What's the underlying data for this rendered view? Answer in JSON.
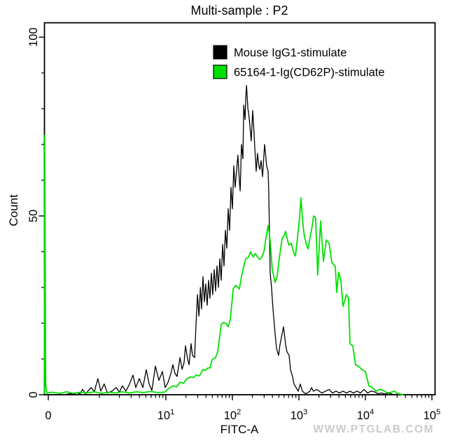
{
  "title": "Multi-sample : P2",
  "watermark": "WWW.PTGLAB.COM",
  "axes": {
    "xlabel": "FITC-A",
    "ylabel": "Count"
  },
  "legend": {
    "items": [
      {
        "label": "Mouse IgG1-stimulate",
        "color": "#000000"
      },
      {
        "label": "65164-1-Ig(CD62P)-stimulate",
        "color": "#00e000"
      }
    ]
  },
  "chart_data": {
    "type": "line",
    "subtype": "flow-cytometry-overlay-histogram",
    "title": "Multi-sample : P2",
    "xlabel": "FITC-A",
    "ylabel": "Count",
    "x_scale": "logicle (linear near 0, logarithmic above 1)",
    "xlim": [
      0,
      100000
    ],
    "ylim": [
      0,
      104
    ],
    "x_ticks": [
      "0",
      "10^1",
      "10^2",
      "10^3",
      "10^4",
      "10^5"
    ],
    "y_ticks": [
      0,
      50,
      100
    ],
    "y_minor_step": 10,
    "grid": false,
    "legend_position": "top-center-inside",
    "series": [
      {
        "name": "Mouse IgG1-stimulate",
        "color": "#000000",
        "stroke_width": 1.3,
        "points": [
          [
            -0.08,
            0
          ],
          [
            0.3,
            0
          ],
          [
            0.42,
            0.3
          ],
          [
            0.5,
            0.1
          ],
          [
            0.56,
            0.6
          ],
          [
            0.62,
            0.2
          ],
          [
            0.67,
            1.5
          ],
          [
            0.73,
            0.3
          ],
          [
            0.84,
            2
          ],
          [
            0.9,
            0.8
          ],
          [
            0.97,
            4.5
          ],
          [
            1.05,
            1
          ],
          [
            1.18,
            3
          ],
          [
            1.32,
            0.5
          ],
          [
            1.55,
            1
          ],
          [
            1.79,
            2
          ],
          [
            2,
            0.7
          ],
          [
            2.22,
            2.5
          ],
          [
            2.5,
            1
          ],
          [
            2.84,
            3
          ],
          [
            3.2,
            5.5
          ],
          [
            3.53,
            2
          ],
          [
            3.98,
            4.5
          ],
          [
            4.5,
            2
          ],
          [
            5.07,
            7
          ],
          [
            5.59,
            3
          ],
          [
            6.16,
            1.2
          ],
          [
            6.95,
            8
          ],
          [
            7.85,
            4
          ],
          [
            8.86,
            6.5
          ],
          [
            9.76,
            2
          ],
          [
            10.8,
            3.5
          ],
          [
            11.9,
            6
          ],
          [
            12.7,
            8.4
          ],
          [
            13.7,
            6
          ],
          [
            14.7,
            5.1
          ],
          [
            16.3,
            10.4
          ],
          [
            17.5,
            7.1
          ],
          [
            18.8,
            9
          ],
          [
            19.7,
            13.7
          ],
          [
            21.2,
            10
          ],
          [
            22.3,
            8.4
          ],
          [
            23.9,
            14.3
          ],
          [
            25.1,
            11
          ],
          [
            27,
            10.4
          ],
          [
            28.4,
            20
          ],
          [
            29.8,
            28
          ],
          [
            31.4,
            22
          ],
          [
            33,
            30
          ],
          [
            34.4,
            24
          ],
          [
            36.1,
            33
          ],
          [
            37.9,
            26
          ],
          [
            39.7,
            31
          ],
          [
            41.8,
            25
          ],
          [
            43.8,
            32
          ],
          [
            45.9,
            27
          ],
          [
            48.3,
            34
          ],
          [
            50.6,
            28
          ],
          [
            53.2,
            35
          ],
          [
            55.9,
            29
          ],
          [
            58.6,
            36
          ],
          [
            61.6,
            30
          ],
          [
            64.7,
            38
          ],
          [
            67.8,
            32
          ],
          [
            71.2,
            42
          ],
          [
            74.8,
            36
          ],
          [
            78.5,
            46
          ],
          [
            82.4,
            41
          ],
          [
            86.4,
            52
          ],
          [
            90.7,
            46
          ],
          [
            95.3,
            58
          ],
          [
            100,
            52
          ],
          [
            105,
            64
          ],
          [
            110,
            58
          ],
          [
            116,
            63
          ],
          [
            121,
            67
          ],
          [
            127,
            60
          ],
          [
            131,
            57
          ],
          [
            137,
            70
          ],
          [
            144,
            66
          ],
          [
            148,
            81
          ],
          [
            155,
            77
          ],
          [
            159,
            83
          ],
          [
            163,
            86.5
          ],
          [
            171,
            80
          ],
          [
            175,
            79
          ],
          [
            183,
            75.5
          ],
          [
            192,
            71
          ],
          [
            202,
            79.5
          ],
          [
            212,
            73
          ],
          [
            217,
            69
          ],
          [
            228,
            62.5
          ],
          [
            239,
            67.5
          ],
          [
            250,
            64
          ],
          [
            258,
            63
          ],
          [
            270,
            65.5
          ],
          [
            284,
            61
          ],
          [
            305,
            70
          ],
          [
            320,
            66
          ],
          [
            327,
            64
          ],
          [
            344,
            62.5
          ],
          [
            352,
            57
          ],
          [
            370,
            34
          ],
          [
            388,
            30
          ],
          [
            408,
            24
          ],
          [
            439,
            17
          ],
          [
            460,
            13
          ],
          [
            495,
            11
          ],
          [
            520,
            14
          ],
          [
            559,
            17
          ],
          [
            586,
            19
          ],
          [
            631,
            14
          ],
          [
            662,
            12
          ],
          [
            712,
            11
          ],
          [
            748,
            7
          ],
          [
            804,
            5
          ],
          [
            844,
            3
          ],
          [
            908,
            2
          ],
          [
            975,
            1
          ],
          [
            1050,
            3
          ],
          [
            1130,
            1
          ],
          [
            1210,
            0.5
          ],
          [
            1280,
            0.3
          ],
          [
            1470,
            1
          ],
          [
            1550,
            2
          ],
          [
            1650,
            1
          ],
          [
            1860,
            1.5
          ],
          [
            2090,
            0.8
          ],
          [
            2220,
            0.5
          ],
          [
            2510,
            1
          ],
          [
            2840,
            1.5
          ],
          [
            3200,
            0.5
          ],
          [
            3610,
            1
          ],
          [
            4080,
            0.5
          ],
          [
            4600,
            1
          ],
          [
            5200,
            0.5
          ],
          [
            5860,
            1
          ],
          [
            6620,
            0.5
          ],
          [
            7480,
            1
          ],
          [
            8440,
            0.5
          ],
          [
            9530,
            1.5
          ],
          [
            10800,
            0.5
          ],
          [
            12100,
            1
          ],
          [
            13700,
            0.8
          ],
          [
            15500,
            0.3
          ],
          [
            17500,
            0.5
          ],
          [
            19700,
            0.2
          ],
          [
            22200,
            0.5
          ],
          [
            25100,
            0.2
          ],
          [
            28400,
            0
          ]
        ]
      },
      {
        "name": "65164-1-Ig(CD62P)-stimulate",
        "color": "#00e000",
        "stroke_width": 1.8,
        "points": [
          [
            -0.08,
            0.3
          ],
          [
            -0.07,
            72.5
          ],
          [
            -0.05,
            3
          ],
          [
            -0.03,
            0.5
          ],
          [
            0.08,
            0.7
          ],
          [
            0.22,
            0.4
          ],
          [
            0.36,
            0.8
          ],
          [
            0.49,
            0.4
          ],
          [
            0.63,
            0.7
          ],
          [
            0.77,
            0.5
          ],
          [
            0.9,
            0.8
          ],
          [
            1.08,
            0.4
          ],
          [
            1.37,
            0.7
          ],
          [
            1.75,
            0.5
          ],
          [
            2.22,
            0.8
          ],
          [
            2.84,
            0.5
          ],
          [
            3.61,
            0.8
          ],
          [
            4.61,
            0.6
          ],
          [
            5.87,
            0.9
          ],
          [
            7.49,
            0.6
          ],
          [
            9.54,
            0.7
          ],
          [
            10.8,
            1.6
          ],
          [
            12.7,
            2.5
          ],
          [
            14.5,
            2.2
          ],
          [
            16.3,
            3.5
          ],
          [
            18.5,
            3.2
          ],
          [
            20.7,
            4.5
          ],
          [
            24,
            5
          ],
          [
            26,
            4.8
          ],
          [
            28.4,
            5.5
          ],
          [
            32,
            5.3
          ],
          [
            36.1,
            7.1
          ],
          [
            39,
            6.8
          ],
          [
            42.9,
            7.5
          ],
          [
            46,
            7.5
          ],
          [
            49.5,
            9.8
          ],
          [
            55.9,
            10.4
          ],
          [
            59.9,
            12
          ],
          [
            63.1,
            15
          ],
          [
            67.8,
            19.6
          ],
          [
            73,
            20.2
          ],
          [
            80.3,
            20
          ],
          [
            86.4,
            19
          ],
          [
            92.9,
            21
          ],
          [
            103,
            29.6
          ],
          [
            113,
            30.6
          ],
          [
            120,
            30
          ],
          [
            127,
            29.6
          ],
          [
            137,
            33
          ],
          [
            148,
            36
          ],
          [
            159,
            38
          ],
          [
            175,
            38.5
          ],
          [
            188,
            40
          ],
          [
            198,
            39
          ],
          [
            206,
            38.5
          ],
          [
            221,
            39.5
          ],
          [
            239,
            38.5
          ],
          [
            258,
            37.8
          ],
          [
            277,
            38.5
          ],
          [
            298,
            40
          ],
          [
            320,
            44
          ],
          [
            344,
            47.3
          ],
          [
            370,
            43
          ],
          [
            398,
            35
          ],
          [
            439,
            31.4
          ],
          [
            471,
            33
          ],
          [
            506,
            38
          ],
          [
            559,
            43.7
          ],
          [
            600,
            44.5
          ],
          [
            631,
            45.7
          ],
          [
            678,
            43
          ],
          [
            712,
            41.8
          ],
          [
            767,
            42.4
          ],
          [
            825,
            40
          ],
          [
            887,
            38.8
          ],
          [
            955,
            44
          ],
          [
            1030,
            50
          ],
          [
            1070,
            55.1
          ],
          [
            1160,
            47
          ],
          [
            1210,
            44.3
          ],
          [
            1300,
            42
          ],
          [
            1370,
            40.8
          ],
          [
            1470,
            44
          ],
          [
            1580,
            47
          ],
          [
            1660,
            50
          ],
          [
            1780,
            49.6
          ],
          [
            1920,
            33.5
          ],
          [
            2120,
            48.6
          ],
          [
            2340,
            37.3
          ],
          [
            2580,
            43.3
          ],
          [
            2840,
            42.4
          ],
          [
            3140,
            36.9
          ],
          [
            3530,
            35.9
          ],
          [
            3700,
            28.6
          ],
          [
            3970,
            34.3
          ],
          [
            4280,
            32
          ],
          [
            4600,
            24.7
          ],
          [
            5200,
            28
          ],
          [
            5580,
            27.1
          ],
          [
            5860,
            14.3
          ],
          [
            6470,
            13.7
          ],
          [
            7100,
            8.4
          ],
          [
            8050,
            7.8
          ],
          [
            8850,
            7
          ],
          [
            10000,
            6.5
          ],
          [
            11300,
            2.5
          ],
          [
            12800,
            2
          ],
          [
            14400,
            1
          ],
          [
            16300,
            1.5
          ],
          [
            18400,
            1.2
          ],
          [
            20800,
            0.6
          ],
          [
            23500,
            0.6
          ],
          [
            27300,
            1
          ],
          [
            29900,
            0.4
          ],
          [
            33000,
            0.2
          ],
          [
            37300,
            0
          ]
        ]
      }
    ]
  }
}
